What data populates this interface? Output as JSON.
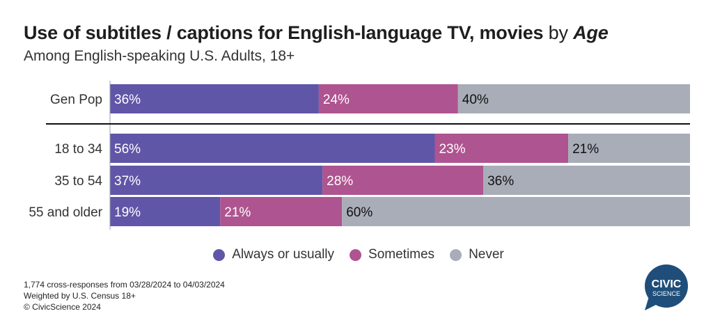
{
  "header": {
    "title_main": "Use of subtitles / captions for English-language TV, movies",
    "title_by": "by",
    "title_age": "Age",
    "subtitle": "Among English-speaking U.S. Adults, 18+"
  },
  "chart_data": {
    "type": "bar",
    "orientation": "horizontal",
    "stacked": true,
    "categories": [
      "Gen Pop",
      "18 to 34",
      "35 to 54",
      "55 and older"
    ],
    "series": [
      {
        "name": "Always or usually",
        "values": [
          36,
          56,
          37,
          19
        ],
        "color": "#5f56a8"
      },
      {
        "name": "Sometimes",
        "values": [
          24,
          23,
          28,
          21
        ],
        "color": "#ae5490"
      },
      {
        "name": "Never",
        "values": [
          40,
          21,
          36,
          60
        ],
        "color": "#a8adb8"
      }
    ],
    "label_format": "percent",
    "legend_position": "bottom"
  },
  "footnotes": [
    "1,774 cross-responses from 03/28/2024 to 04/03/2024",
    "Weighted by U.S. Census 18+",
    "© CivicScience 2024"
  ],
  "logo": {
    "line1": "CIVIC",
    "line2": "SCIENCE",
    "color": "#1f4e7a"
  }
}
